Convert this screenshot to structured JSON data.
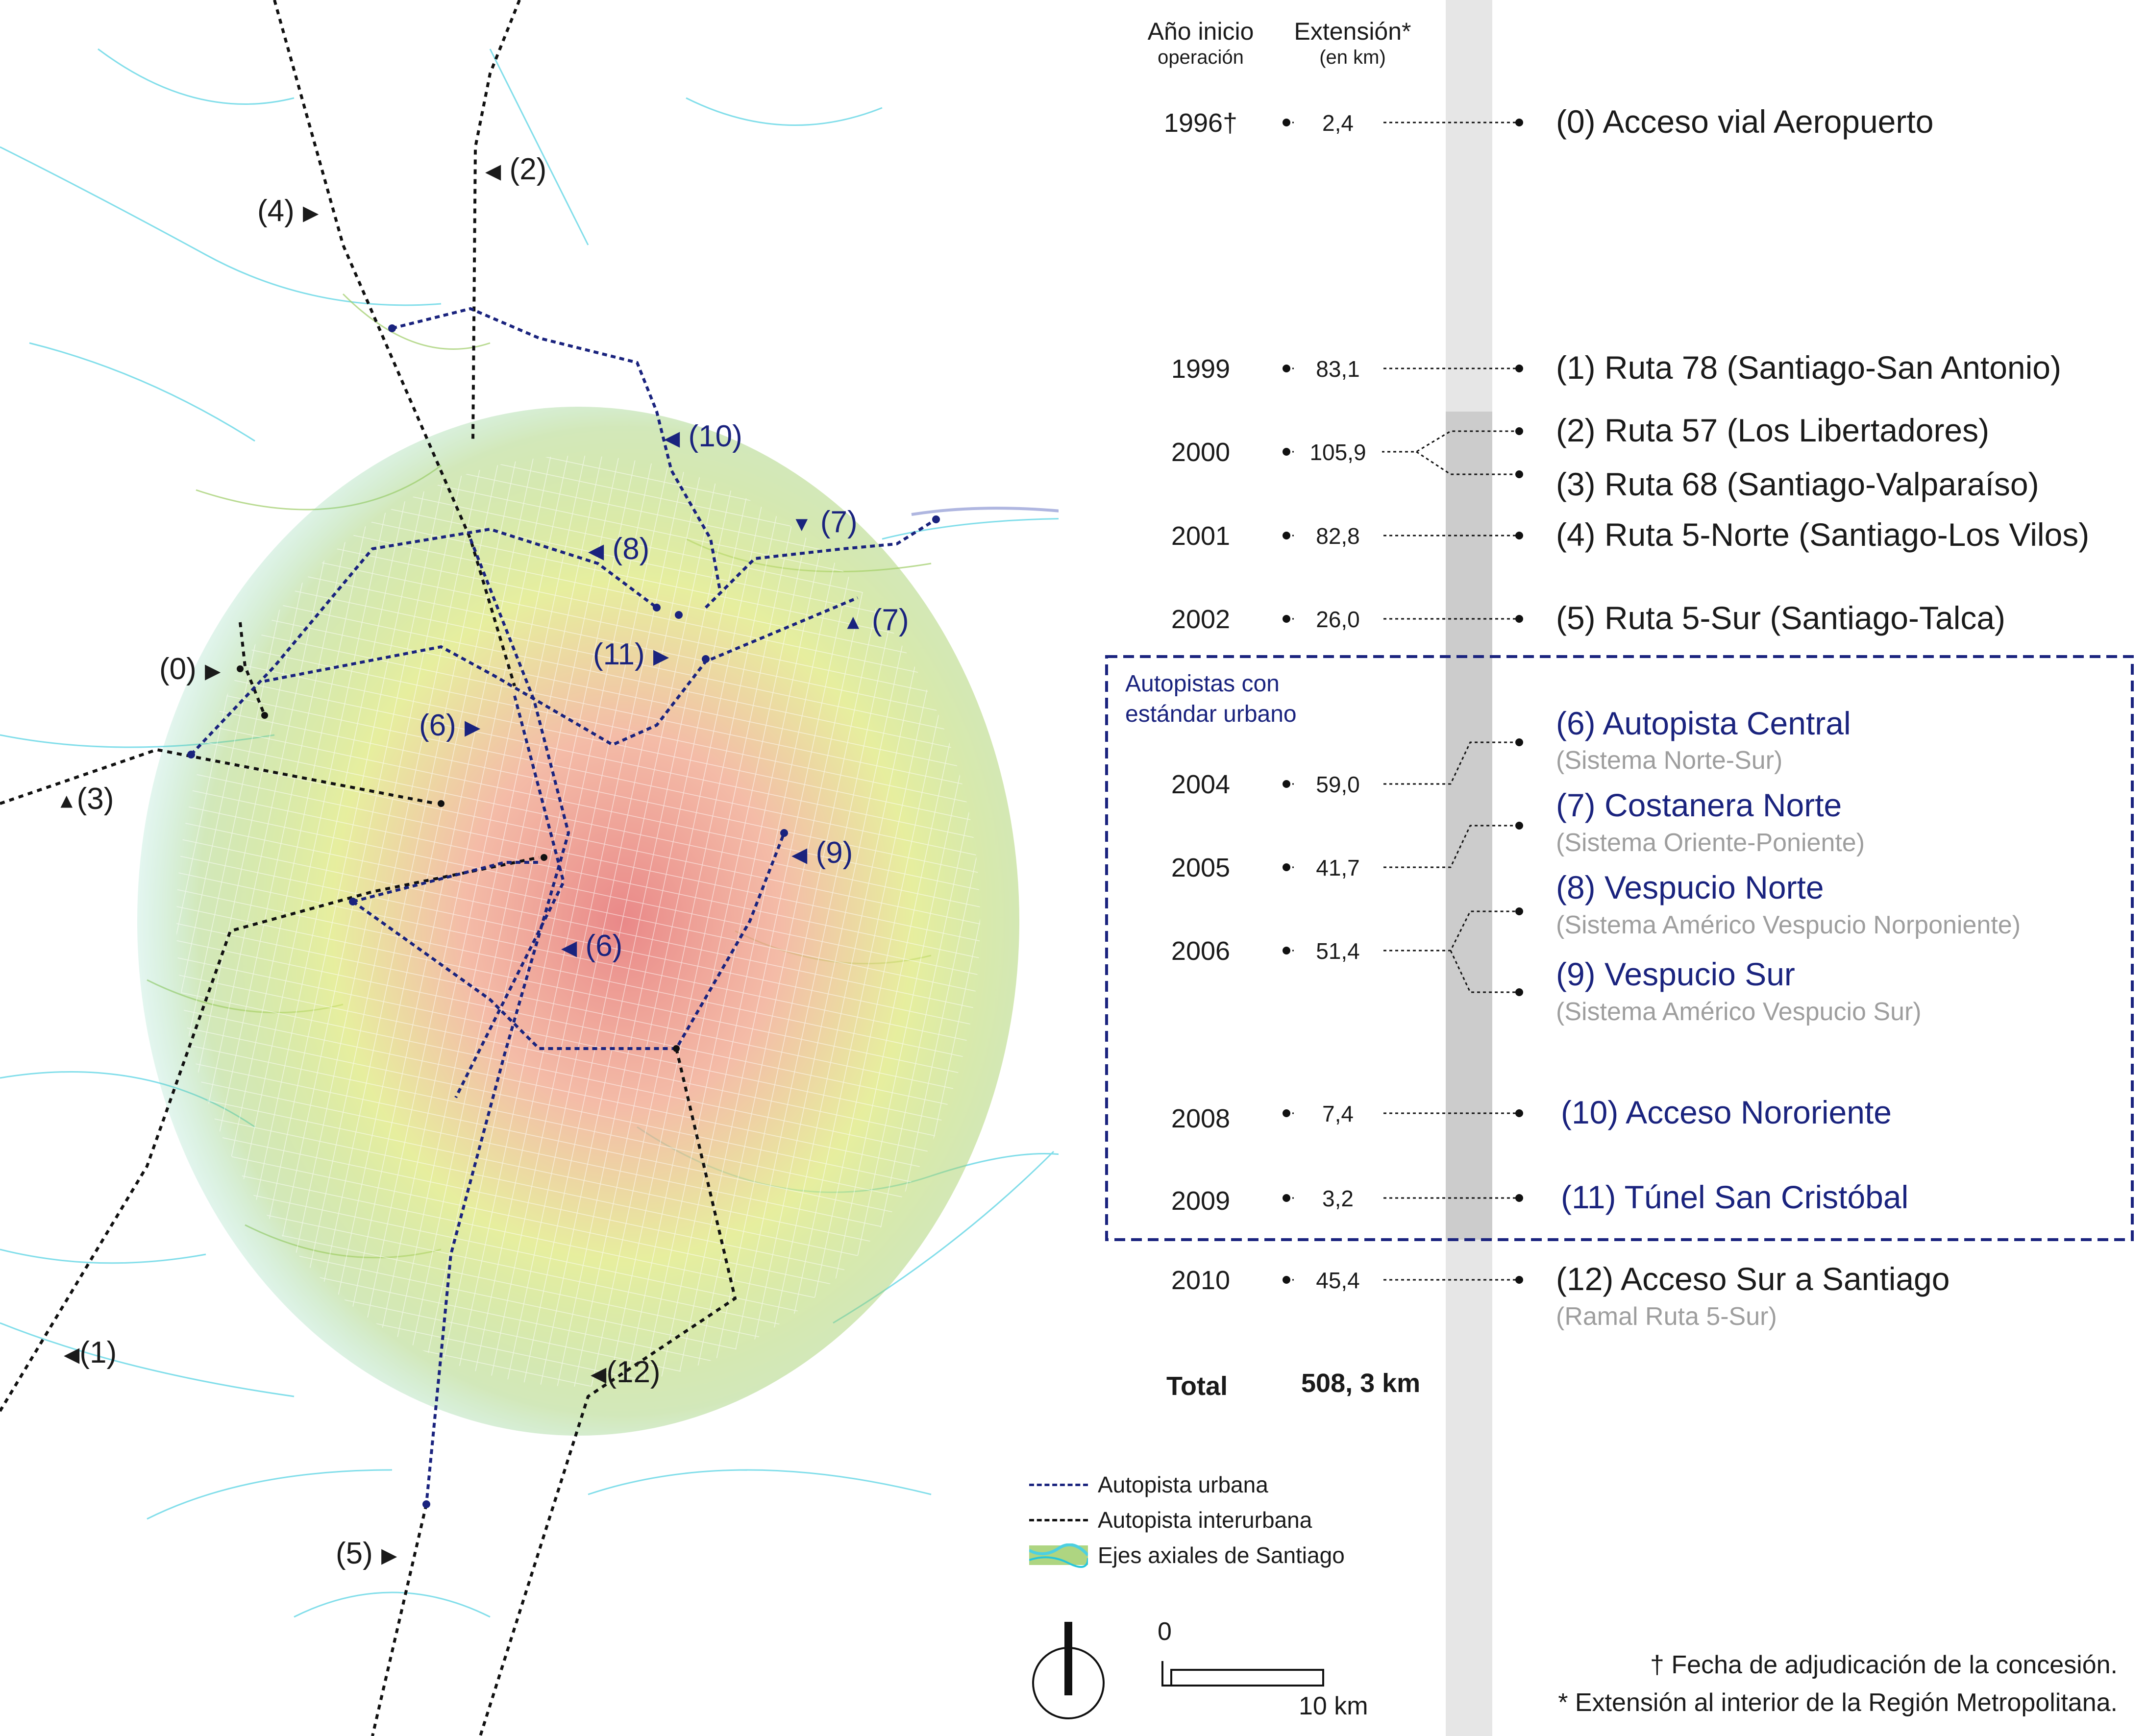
{
  "header": {
    "year_label_line1": "Año inicio",
    "year_label_line2": "operación",
    "ext_label_line1": "Extensión*",
    "ext_label_line2": "(en km)"
  },
  "rows": [
    {
      "year": "1996†",
      "ext": "2,4"
    },
    {
      "year": "1999",
      "ext": "83,1"
    },
    {
      "year": "2000",
      "ext": "105,9"
    },
    {
      "year": "2001",
      "ext": "82,8"
    },
    {
      "year": "2002",
      "ext": "26,0"
    },
    {
      "year": "2004",
      "ext": "59,0"
    },
    {
      "year": "2005",
      "ext": "41,7"
    },
    {
      "year": "2006",
      "ext": "51,4"
    },
    {
      "year": "2008",
      "ext": "7,4"
    },
    {
      "year": "2009",
      "ext": "3,2"
    },
    {
      "year": "2010",
      "ext": "45,4"
    }
  ],
  "routes": [
    {
      "name": "(0) Acceso vial Aeropuerto",
      "sub": ""
    },
    {
      "name": "(1) Ruta 78 (Santiago-San Antonio)",
      "sub": ""
    },
    {
      "name": "(2) Ruta 57 (Los Libertadores)",
      "sub": ""
    },
    {
      "name": "(3) Ruta 68 (Santiago-Valparaíso)",
      "sub": ""
    },
    {
      "name": "(4) Ruta 5-Norte (Santiago-Los Vilos)",
      "sub": ""
    },
    {
      "name": "(5) Ruta 5-Sur (Santiago-Talca)",
      "sub": ""
    },
    {
      "name": "(6) Autopista Central",
      "sub": "(Sistema Norte-Sur)"
    },
    {
      "name": "(7) Costanera Norte",
      "sub": "(Sistema Oriente-Poniente)"
    },
    {
      "name": "(8) Vespucio Norte",
      "sub": "(Sistema Américo Vespucio Norponiente)"
    },
    {
      "name": "(9) Vespucio Sur",
      "sub": "(Sistema Américo Vespucio Sur)"
    },
    {
      "name": "(10) Acceso Nororiente",
      "sub": ""
    },
    {
      "name": "(11) Túnel San Cristóbal",
      "sub": ""
    },
    {
      "name": "(12) Acceso Sur a Santiago",
      "sub": "(Ramal Ruta 5-Sur)"
    }
  ],
  "urban_group_title_line1": "Autopistas con",
  "urban_group_title_line2": "estándar urbano",
  "total": {
    "label": "Total",
    "value": "508, 3 km"
  },
  "map_labels": {
    "l0": "(0)",
    "l1": "(1)",
    "l2": "(2)",
    "l3": "(3)",
    "l4": "(4)",
    "l5": "(5)",
    "l6a": "(6)",
    "l6b": "(6)",
    "l7a": "(7)",
    "l7b": "(7)",
    "l8": "(8)",
    "l9": "(9)",
    "l10": "(10)",
    "l11": "(11)",
    "l12": "(12)"
  },
  "legend": {
    "urban": "Autopista urbana",
    "interurban": "Autopista interurbana",
    "axes": "Ejes axiales de Santiago"
  },
  "scale": {
    "zero": "0",
    "ten": "10 km"
  },
  "footnotes": {
    "dagger": "† Fecha de adjudicación de la concesión.",
    "star": "* Extensión al interior de la Región Metropolitana."
  },
  "colors": {
    "urban_line": "#1a237e",
    "interurban_line": "#111111",
    "grid_band_light": "#e6e6e6",
    "grid_band_dark": "#cccccc",
    "subtitle_gray": "#9e9e9e",
    "heat_center": "#e57373",
    "heat_mid": "#dce775",
    "heat_outer": "#4dd0e1"
  }
}
